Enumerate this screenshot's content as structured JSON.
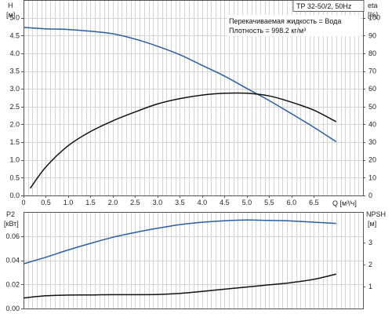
{
  "chart_data": [
    {
      "type": "line",
      "title": "TP 32-50/2, 50Hz",
      "annotations": [
        "Перекачиваемая жидкость = Вода",
        "Плотность = 998.2 кг/м³"
      ],
      "xlabel": "Q [м³/ч]",
      "ylabel_left": [
        "H",
        "[м]"
      ],
      "ylabel_right": [
        "eta",
        "[%]"
      ],
      "xlim": [
        0,
        7.6
      ],
      "x_ticks": [
        "0",
        "0.5",
        "1.0",
        "1.5",
        "2.0",
        "2.5",
        "3.0",
        "3.5",
        "4.0",
        "4.5",
        "5.0",
        "5.5",
        "6.0",
        "6.5"
      ],
      "ylim_left": [
        0,
        5.5
      ],
      "y_ticks_left": [
        "0.0",
        "0.5",
        "1.0",
        "1.5",
        "2.0",
        "2.5",
        "3.0",
        "3.5",
        "4.0",
        "4.5",
        "5.0"
      ],
      "ylim_right": [
        0,
        110
      ],
      "y_ticks_right": [
        "0",
        "10",
        "20",
        "30",
        "40",
        "50",
        "60",
        "70",
        "80",
        "90",
        "100"
      ],
      "grid": true,
      "series": [
        {
          "axis": "left",
          "color": "#2b5e9a",
          "x": [
            0,
            0.5,
            1.0,
            1.5,
            2.0,
            2.5,
            3.0,
            3.5,
            4.0,
            4.5,
            5.0,
            5.5,
            6.0,
            6.5,
            7.0
          ],
          "y": [
            4.73,
            4.69,
            4.67,
            4.62,
            4.55,
            4.4,
            4.2,
            3.96,
            3.66,
            3.36,
            3.01,
            2.67,
            2.3,
            1.92,
            1.51
          ]
        },
        {
          "axis": "right",
          "color": "#111111",
          "x": [
            0.15,
            0.5,
            1.0,
            1.5,
            2.0,
            2.5,
            3.0,
            3.5,
            4.0,
            4.5,
            5.0,
            5.5,
            6.0,
            6.5,
            7.0
          ],
          "y": [
            4,
            16,
            28,
            36,
            42,
            47,
            51.5,
            54.5,
            56.5,
            57.5,
            57.5,
            56,
            52.5,
            48,
            41.5
          ]
        }
      ]
    },
    {
      "type": "line",
      "ylabel_left": [
        "P2",
        "[кВт]"
      ],
      "ylabel_right": [
        "NPSH",
        "[м]"
      ],
      "xlim": [
        0,
        7.6
      ],
      "ylim_left": [
        0,
        0.08
      ],
      "y_ticks_left": [
        "0.00",
        "0.02",
        "0.04",
        "0.06"
      ],
      "ylim_right": [
        0,
        4.4
      ],
      "y_ticks_right": [
        "1",
        "2",
        "3"
      ],
      "grid": true,
      "series": [
        {
          "axis": "left",
          "color": "#2b5e9a",
          "x": [
            0,
            0.5,
            1.0,
            1.5,
            2.0,
            2.5,
            3.0,
            3.5,
            4.0,
            4.5,
            5.0,
            5.5,
            6.0,
            6.5,
            7.0
          ],
          "y": [
            0.037,
            0.0425,
            0.0485,
            0.054,
            0.059,
            0.063,
            0.0665,
            0.0695,
            0.0715,
            0.0727,
            0.0733,
            0.073,
            0.0725,
            0.0715,
            0.0705
          ]
        },
        {
          "axis": "right",
          "color": "#111111",
          "x": [
            0,
            0.5,
            1.0,
            1.5,
            2.0,
            2.5,
            3.0,
            3.5,
            4.0,
            4.5,
            5.0,
            5.5,
            6.0,
            6.5,
            7.0
          ],
          "y": [
            0.48,
            0.58,
            0.61,
            0.62,
            0.63,
            0.63,
            0.64,
            0.69,
            0.78,
            0.88,
            0.98,
            1.08,
            1.18,
            1.33,
            1.57
          ]
        }
      ]
    }
  ]
}
